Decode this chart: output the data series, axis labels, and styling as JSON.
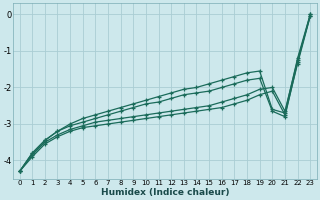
{
  "xlabel": "Humidex (Indice chaleur)",
  "ylabel": "",
  "bg_color": "#cde8ec",
  "grid_color": "#aacdd4",
  "line_color": "#1a6b5a",
  "xlim": [
    -0.5,
    23.5
  ],
  "ylim": [
    -4.5,
    0.3
  ],
  "xticks": [
    0,
    1,
    2,
    3,
    4,
    5,
    6,
    7,
    8,
    9,
    10,
    11,
    12,
    13,
    14,
    15,
    16,
    17,
    18,
    19,
    20,
    21,
    22,
    23
  ],
  "yticks": [
    0,
    -1,
    -2,
    -3,
    -4
  ],
  "x": [
    0,
    1,
    2,
    3,
    4,
    5,
    6,
    7,
    8,
    9,
    10,
    11,
    12,
    13,
    14,
    15,
    16,
    17,
    18,
    19,
    20,
    21,
    22,
    23
  ],
  "lines": [
    [
      -4.3,
      -3.9,
      -3.55,
      -3.35,
      -3.2,
      -3.1,
      -3.05,
      -3.0,
      -2.95,
      -2.9,
      -2.85,
      -2.8,
      -2.75,
      -2.7,
      -2.65,
      -2.6,
      -2.55,
      -2.45,
      -2.35,
      -2.2,
      -2.1,
      -2.75,
      -1.35,
      -0.05
    ],
    [
      -4.3,
      -3.85,
      -3.5,
      -3.3,
      -3.15,
      -3.05,
      -2.95,
      -2.9,
      -2.85,
      -2.8,
      -2.75,
      -2.7,
      -2.65,
      -2.6,
      -2.55,
      -2.5,
      -2.4,
      -2.3,
      -2.2,
      -2.05,
      -2.0,
      -2.65,
      -1.25,
      -0.05
    ],
    [
      -4.3,
      -3.8,
      -3.45,
      -3.2,
      -3.05,
      -2.95,
      -2.85,
      -2.75,
      -2.65,
      -2.55,
      -2.45,
      -2.4,
      -2.3,
      -2.2,
      -2.15,
      -2.1,
      -2.0,
      -1.9,
      -1.8,
      -1.75,
      -2.65,
      -2.8,
      -1.3,
      0.0
    ],
    [
      -4.3,
      -3.8,
      -3.45,
      -3.2,
      -3.0,
      -2.85,
      -2.75,
      -2.65,
      -2.55,
      -2.45,
      -2.35,
      -2.25,
      -2.15,
      -2.05,
      -2.0,
      -1.9,
      -1.8,
      -1.7,
      -1.6,
      -1.55,
      -2.6,
      -2.7,
      -1.2,
      0.0
    ]
  ]
}
